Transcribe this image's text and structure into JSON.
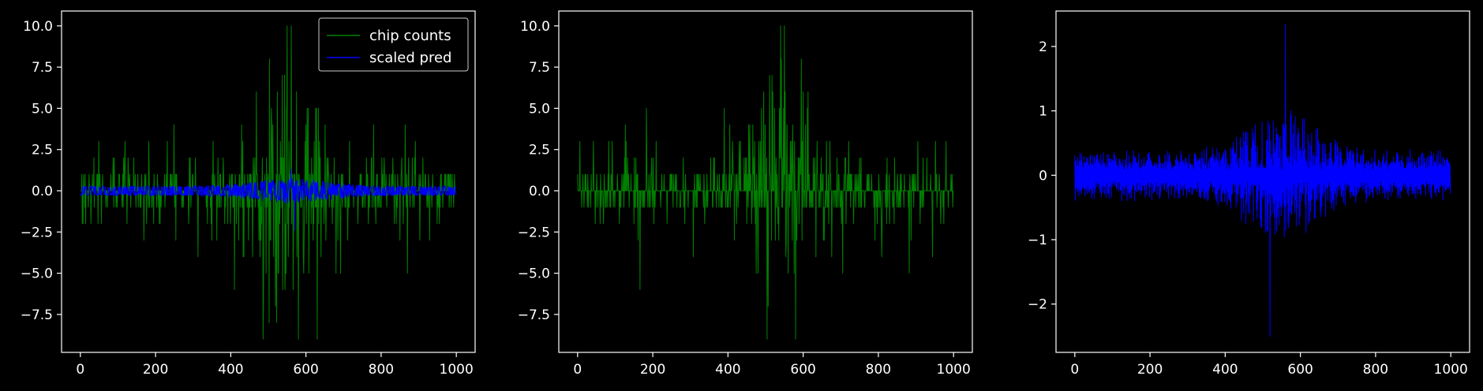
{
  "colors": {
    "background": "#000000",
    "axes": "#ffffff",
    "chip_counts": "#008000",
    "scaled_pred": "#0000ff"
  },
  "chart_data": [
    {
      "type": "line",
      "title": "",
      "xlabel": "",
      "ylabel": "",
      "xlim": [
        -50,
        1050
      ],
      "ylim": [
        -9.8,
        10.9
      ],
      "xticks": [
        0,
        200,
        400,
        600,
        800,
        1000
      ],
      "xtick_labels": [
        "0",
        "200",
        "400",
        "600",
        "800",
        "1000"
      ],
      "yticks": [
        -7.5,
        -5.0,
        -2.5,
        0.0,
        2.5,
        5.0,
        7.5,
        10.0
      ],
      "ytick_labels": [
        "−7.5",
        "−5.0",
        "−2.5",
        "0.0",
        "2.5",
        "5.0",
        "7.5",
        "10.0"
      ],
      "legend": {
        "placement": "upper-right",
        "entries": [
          "chip counts",
          "scaled pred"
        ]
      },
      "series": [
        {
          "name": "chip counts",
          "kind": "counts",
          "n_points": 1000,
          "peak_center": 550,
          "max": 10,
          "min": -9
        },
        {
          "name": "scaled pred",
          "kind": "pred_signed",
          "n_points": 1000,
          "peak_center": 560,
          "max": 1.3,
          "min": -2.4
        }
      ]
    },
    {
      "type": "line",
      "title": "",
      "xlabel": "",
      "ylabel": "",
      "xlim": [
        -50,
        1050
      ],
      "ylim": [
        -9.8,
        10.9
      ],
      "xticks": [
        0,
        200,
        400,
        600,
        800,
        1000
      ],
      "xtick_labels": [
        "0",
        "200",
        "400",
        "600",
        "800",
        "1000"
      ],
      "yticks": [
        -7.5,
        -5.0,
        -2.5,
        0.0,
        2.5,
        5.0,
        7.5,
        10.0
      ],
      "ytick_labels": [
        "−7.5",
        "−5.0",
        "−2.5",
        "0.0",
        "2.5",
        "5.0",
        "7.5",
        "10.0"
      ],
      "series": [
        {
          "name": "chip counts",
          "kind": "counts",
          "n_points": 1000,
          "peak_center": 550,
          "max": 10,
          "min": -9
        }
      ]
    },
    {
      "type": "line",
      "title": "",
      "xlabel": "",
      "ylabel": "",
      "xlim": [
        -50,
        1050
      ],
      "ylim": [
        -2.75,
        2.55
      ],
      "xticks": [
        0,
        200,
        400,
        600,
        800,
        1000
      ],
      "xtick_labels": [
        "0",
        "200",
        "400",
        "600",
        "800",
        "1000"
      ],
      "yticks": [
        -2,
        -1,
        0,
        1,
        2
      ],
      "ytick_labels": [
        "−2",
        "−1",
        "0",
        "1",
        "2"
      ],
      "series": [
        {
          "name": "scaled pred",
          "kind": "pred_split",
          "n_points": 1000,
          "peak_center": 560,
          "max": 2.35,
          "min": -2.5
        }
      ]
    }
  ]
}
